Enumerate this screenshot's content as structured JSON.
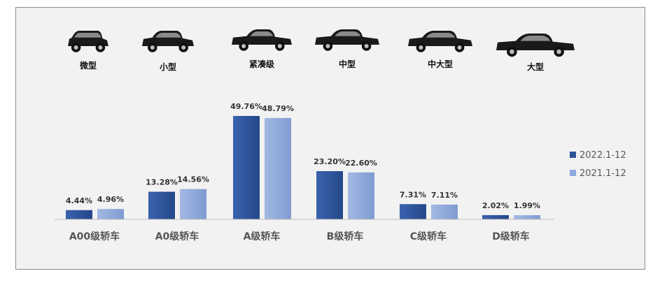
{
  "chart_data": {
    "type": "bar",
    "categories": [
      "A00级轿车",
      "A0级轿车",
      "A级轿车",
      "B级轿车",
      "C级轿车",
      "D级轿车"
    ],
    "car_types": [
      "微型",
      "小型",
      "紧凑级",
      "中型",
      "中大型",
      "大型"
    ],
    "series": [
      {
        "name": "2022.1-12",
        "values": [
          4.44,
          13.28,
          49.76,
          23.2,
          7.31,
          2.02
        ],
        "labels": [
          "4.44%",
          "13.28%",
          "49.76%",
          "23.20%",
          "7.31%",
          "2.02%"
        ]
      },
      {
        "name": "2021.1-12",
        "values": [
          4.96,
          14.56,
          48.79,
          22.6,
          7.11,
          1.99
        ],
        "labels": [
          "4.96%",
          "14.56%",
          "48.79%",
          "22.60%",
          "7.11%",
          "1.99%"
        ]
      }
    ],
    "ylim": [
      0,
      50
    ],
    "legend": "right",
    "grid": false,
    "colors": {
      "series_0": "#2f5597",
      "series_1": "#8faadc",
      "axis": "#bfbfbf",
      "car": "#1a1a1a"
    },
    "icons": [
      "micro-car-icon",
      "small-car-icon",
      "compact-car-icon",
      "midsize-car-icon",
      "large-midsize-car-icon",
      "large-car-icon"
    ]
  }
}
